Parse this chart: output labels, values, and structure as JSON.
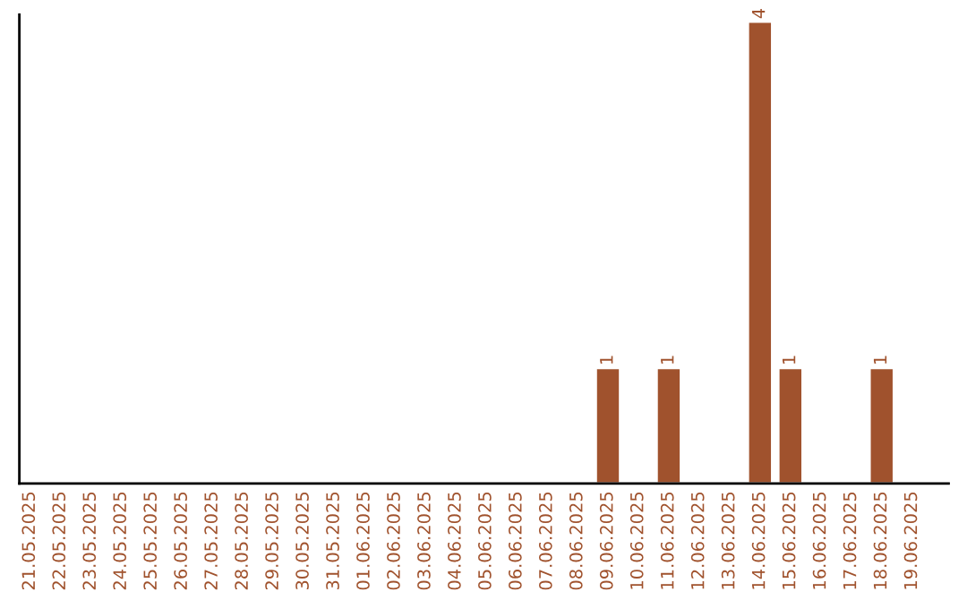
{
  "chart_data": {
    "type": "bar",
    "categories": [
      "21.05.2025",
      "22.05.2025",
      "23.05.2025",
      "24.05.2025",
      "25.05.2025",
      "26.05.2025",
      "27.05.2025",
      "28.05.2025",
      "29.05.2025",
      "30.05.2025",
      "31.05.2025",
      "01.06.2025",
      "02.06.2025",
      "03.06.2025",
      "04.06.2025",
      "05.06.2025",
      "06.06.2025",
      "07.06.2025",
      "08.06.2025",
      "09.06.2025",
      "10.06.2025",
      "11.06.2025",
      "12.06.2025",
      "13.06.2025",
      "14.06.2025",
      "15.06.2025",
      "16.06.2025",
      "17.06.2025",
      "18.06.2025",
      "19.06.2025"
    ],
    "values": [
      null,
      null,
      null,
      null,
      null,
      null,
      null,
      null,
      null,
      null,
      null,
      null,
      null,
      null,
      null,
      null,
      null,
      null,
      null,
      1,
      null,
      1,
      null,
      null,
      4,
      1,
      null,
      null,
      1,
      null
    ],
    "data_labels": true,
    "color": "#a0522d",
    "grid": false,
    "legend": false
  }
}
